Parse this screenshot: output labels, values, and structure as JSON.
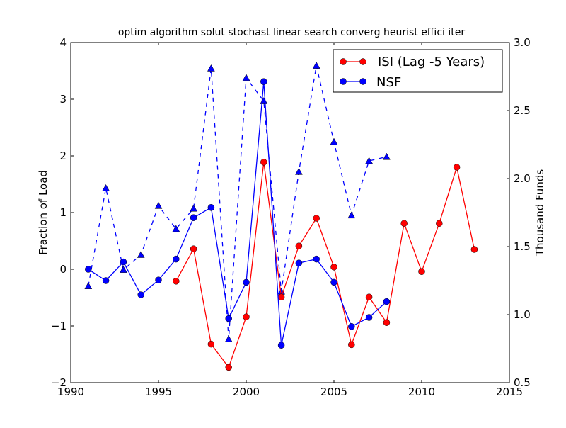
{
  "chart_data": {
    "type": "line",
    "title": "optim algorithm solut stochast linear search converg heurist effici iter",
    "xlabel": "",
    "ylabel": "Fraction of Load",
    "ylabel_right": "Thousand Funds",
    "xlim": [
      1990,
      2015
    ],
    "ylim": [
      -2,
      4
    ],
    "ylim_right": [
      0.5,
      3.0
    ],
    "xticks": [
      "1990",
      "1995",
      "2000",
      "2005",
      "2010",
      "2015"
    ],
    "yticks": [
      "−2",
      "−1",
      "0",
      "1",
      "2",
      "3",
      "4"
    ],
    "yticks_right": [
      "0.5",
      "1.0",
      "1.5",
      "2.0",
      "2.5",
      "3.0"
    ],
    "legend_position": "top-right",
    "series": [
      {
        "name": "ISI (Lag -5 Years)",
        "axis": "left",
        "color": "#ff0000",
        "style": "solid",
        "marker": "circle",
        "in_legend": true,
        "x": [
          1996,
          1997,
          1998,
          1999,
          2000,
          2001,
          2002,
          2003,
          2004,
          2005,
          2006,
          2007,
          2008,
          2009,
          2010,
          2011,
          2012,
          2013
        ],
        "y": [
          -0.21,
          0.36,
          -1.32,
          -1.73,
          -0.84,
          1.89,
          -0.49,
          0.41,
          0.9,
          0.04,
          -1.33,
          -0.49,
          -0.94,
          0.81,
          -0.04,
          0.81,
          1.8,
          0.35
        ]
      },
      {
        "name": "NSF",
        "axis": "left",
        "color": "#0000ff",
        "style": "solid",
        "marker": "circle",
        "in_legend": true,
        "x": [
          1991,
          1992,
          1993,
          1994,
          1995,
          1996,
          1997,
          1998,
          1999,
          2000,
          2001,
          2002,
          2003,
          2004,
          2005,
          2006,
          2007,
          2008
        ],
        "y": [
          0,
          -0.2,
          0.13,
          -0.45,
          -0.19,
          0.18,
          0.91,
          1.09,
          -0.87,
          -0.23,
          3.31,
          -1.34,
          0.11,
          0.18,
          -0.23,
          -1.01,
          -0.85,
          -0.57
        ]
      },
      {
        "name": "Thousand Funds",
        "axis": "right",
        "color": "#0000ff",
        "style": "dashed",
        "marker": "triangle",
        "in_legend": false,
        "x": [
          1991,
          1992,
          1993,
          1994,
          1995,
          1996,
          1997,
          1998,
          1999,
          2000,
          2001,
          2002,
          2003,
          2004,
          2005,
          2006,
          2007,
          2008
        ],
        "y": [
          1.21,
          1.93,
          1.33,
          1.44,
          1.8,
          1.63,
          1.78,
          2.81,
          0.82,
          2.74,
          2.57,
          1.17,
          2.05,
          2.83,
          2.27,
          1.73,
          2.13,
          2.16
        ]
      }
    ]
  }
}
